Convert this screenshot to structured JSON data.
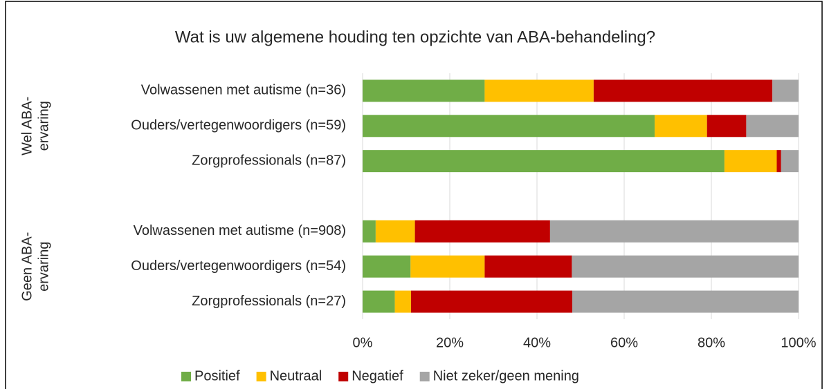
{
  "chart_data": {
    "type": "bar",
    "orientation": "horizontal",
    "stacked": true,
    "title": "Wat is uw algemene houding ten opzichte van ABA-behandeling?",
    "groups": [
      {
        "label": [
          "Wel ABA-",
          "ervaring"
        ]
      },
      {
        "label": [
          "Geen ABA-",
          "ervaring"
        ]
      }
    ],
    "categories": [
      "Volwassenen met autisme (n=36)",
      "Ouders/vertegenwoordigers (n=59)",
      "Zorgprofessionals (n=87)",
      null,
      "Volwassenen met autisme (n=908)",
      "Ouders/vertegenwoordigers (n=54)",
      "Zorgprofessionals (n=27)"
    ],
    "series": [
      {
        "name": "Positief",
        "color": "#70ad47",
        "values": [
          28,
          67,
          83,
          null,
          3,
          11,
          7.4
        ]
      },
      {
        "name": "Neutraal",
        "color": "#ffc000",
        "values": [
          25,
          12,
          12,
          null,
          9,
          17,
          3.7
        ]
      },
      {
        "name": "Negatief",
        "color": "#c00000",
        "values": [
          41,
          9,
          1,
          null,
          31,
          20,
          37
        ]
      },
      {
        "name": "Niet zeker/geen mening",
        "color": "#a5a5a5",
        "values": [
          6,
          12,
          4,
          null,
          57,
          52,
          51.9
        ]
      }
    ],
    "xlim": [
      0,
      100
    ],
    "xticks": [
      {
        "value": 0,
        "label": "0%"
      },
      {
        "value": 20,
        "label": "20%"
      },
      {
        "value": 40,
        "label": "40%"
      },
      {
        "value": 60,
        "label": "60%"
      },
      {
        "value": 80,
        "label": "80%"
      },
      {
        "value": 100,
        "label": "100%"
      }
    ],
    "grid": true,
    "legend": "bottom"
  }
}
